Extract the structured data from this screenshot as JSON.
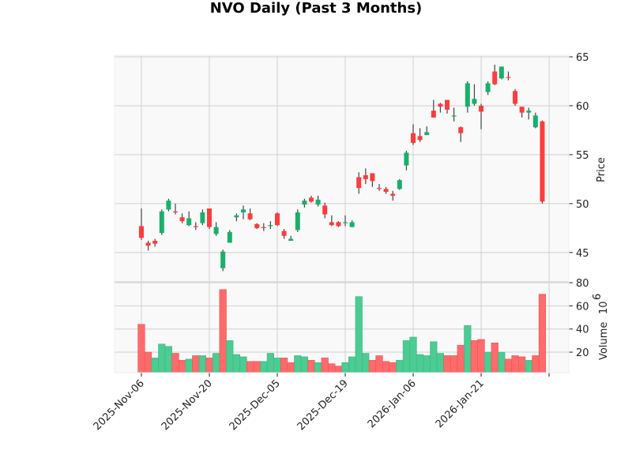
{
  "chart_data": {
    "type": "candlestick",
    "title": "NVO Daily (Past 3 Months)",
    "ylabel": "Price",
    "volume_label": "Volume",
    "volume_exponent": "10",
    "volume_exponent_power": "6",
    "ylim": [
      42.0,
      65.16
    ],
    "volume_ylim": [
      2.3,
      80.7
    ],
    "xlim": [
      -3.95,
      62.9
    ],
    "price_ticks": [
      "45",
      "50",
      "55",
      "60",
      "65"
    ],
    "volume_ticks": [
      "20",
      "40",
      "60",
      "80"
    ],
    "x_ticks": [
      {
        "index": 0,
        "label": "2025-Nov-06"
      },
      {
        "index": 10,
        "label": "2025-Nov-20"
      },
      {
        "index": 20,
        "label": "2025-Dec-05"
      },
      {
        "index": 30,
        "label": "2025-Dec-19"
      },
      {
        "index": 40,
        "label": "2026-Jan-06"
      },
      {
        "index": 50,
        "label": "2026-Jan-21"
      },
      {
        "index": 60,
        "label": ""
      }
    ],
    "grid": true,
    "colors": {
      "up": "#1aaf6c",
      "down": "#ff3c3c",
      "vol_up": "#4ccb92",
      "vol_down": "#ff6b6b",
      "wick": "#444444",
      "panel": "#f9f9f9",
      "grid": "#d0d0d0"
    },
    "ohlc": [
      [
        47.7,
        49.5,
        46.3,
        46.5
      ],
      [
        46.0,
        46.2,
        45.2,
        45.7
      ],
      [
        46.2,
        46.4,
        45.6,
        45.9
      ],
      [
        47.0,
        49.4,
        46.8,
        49.2
      ],
      [
        49.4,
        50.5,
        49.2,
        50.3
      ],
      [
        49.2,
        50.0,
        48.9,
        49.1
      ],
      [
        48.6,
        49.0,
        48.0,
        48.2
      ],
      [
        47.8,
        49.2,
        47.7,
        48.5
      ],
      [
        47.7,
        48.1,
        47.3,
        47.6
      ],
      [
        48.0,
        49.4,
        47.8,
        49.1
      ],
      [
        49.5,
        49.5,
        47.4,
        47.6
      ],
      [
        46.9,
        48.1,
        46.7,
        47.6
      ],
      [
        43.4,
        45.3,
        43.1,
        45.1
      ],
      [
        46.0,
        47.3,
        46.0,
        47.1
      ],
      [
        48.6,
        49.0,
        48.2,
        48.8
      ],
      [
        49.1,
        49.8,
        48.4,
        49.4
      ],
      [
        49.0,
        49.5,
        48.3,
        48.4
      ],
      [
        47.9,
        48.0,
        47.4,
        47.5
      ],
      [
        47.6,
        48.0,
        47.2,
        47.5
      ],
      [
        47.7,
        48.2,
        47.4,
        47.8
      ],
      [
        49.0,
        49.1,
        47.7,
        47.8
      ],
      [
        47.2,
        47.4,
        46.4,
        46.7
      ],
      [
        46.2,
        46.7,
        46.2,
        46.4
      ],
      [
        47.3,
        49.4,
        47.1,
        49.1
      ],
      [
        49.9,
        50.5,
        49.6,
        50.3
      ],
      [
        50.6,
        50.8,
        50.1,
        50.2
      ],
      [
        49.9,
        50.8,
        49.7,
        50.4
      ],
      [
        49.8,
        50.1,
        48.5,
        48.9
      ],
      [
        48.1,
        48.8,
        47.7,
        47.8
      ],
      [
        48.1,
        48.2,
        47.6,
        47.7
      ],
      [
        48.0,
        48.8,
        47.7,
        48.1
      ],
      [
        47.6,
        48.3,
        47.6,
        48.1
      ],
      [
        52.7,
        53.2,
        51.0,
        51.6
      ],
      [
        52.9,
        53.6,
        52.0,
        52.5
      ],
      [
        53.1,
        53.1,
        51.7,
        52.3
      ],
      [
        51.6,
        52.0,
        51.3,
        51.5
      ],
      [
        51.5,
        51.7,
        51.0,
        51.2
      ],
      [
        51.0,
        51.3,
        50.3,
        50.8
      ],
      [
        51.5,
        52.5,
        51.4,
        52.4
      ],
      [
        53.9,
        55.4,
        53.4,
        55.2
      ],
      [
        57.2,
        58.1,
        56.0,
        56.2
      ],
      [
        56.9,
        57.7,
        56.3,
        56.5
      ],
      [
        57.0,
        57.9,
        57.0,
        57.3
      ],
      [
        59.5,
        60.6,
        58.8,
        58.8
      ],
      [
        60.2,
        60.3,
        59.3,
        59.9
      ],
      [
        60.6,
        60.6,
        59.2,
        59.6
      ],
      [
        58.9,
        59.8,
        58.4,
        59.0
      ],
      [
        57.8,
        57.9,
        56.3,
        57.2
      ],
      [
        59.9,
        62.5,
        59.3,
        62.3
      ],
      [
        60.2,
        62.2,
        60.0,
        60.7
      ],
      [
        60.0,
        60.2,
        57.6,
        59.4
      ],
      [
        61.4,
        62.5,
        61.1,
        62.3
      ],
      [
        63.5,
        64.2,
        62.1,
        62.2
      ],
      [
        62.8,
        64.0,
        62.7,
        64.0
      ],
      [
        62.95,
        63.5,
        62.6,
        62.9
      ],
      [
        61.5,
        61.7,
        60.0,
        60.2
      ],
      [
        59.9,
        59.9,
        58.8,
        59.3
      ],
      [
        59.3,
        59.8,
        58.6,
        59.5
      ],
      [
        57.8,
        59.3,
        57.7,
        59.0
      ],
      [
        58.4,
        58.5,
        50.0,
        50.2
      ]
    ],
    "volume_millions": [
      44,
      20,
      15,
      27,
      25,
      19,
      13,
      14,
      17,
      17,
      15,
      19,
      74,
      30,
      18,
      16,
      12,
      12,
      12,
      19,
      15,
      15,
      11,
      17,
      16,
      13,
      11,
      15,
      10,
      8,
      11,
      16,
      68,
      19,
      13,
      17,
      12,
      11,
      13,
      30,
      33,
      18,
      17,
      29,
      19,
      17,
      17,
      26,
      43,
      30,
      31,
      20,
      28,
      20,
      14,
      17,
      16,
      13,
      17,
      70
    ]
  }
}
